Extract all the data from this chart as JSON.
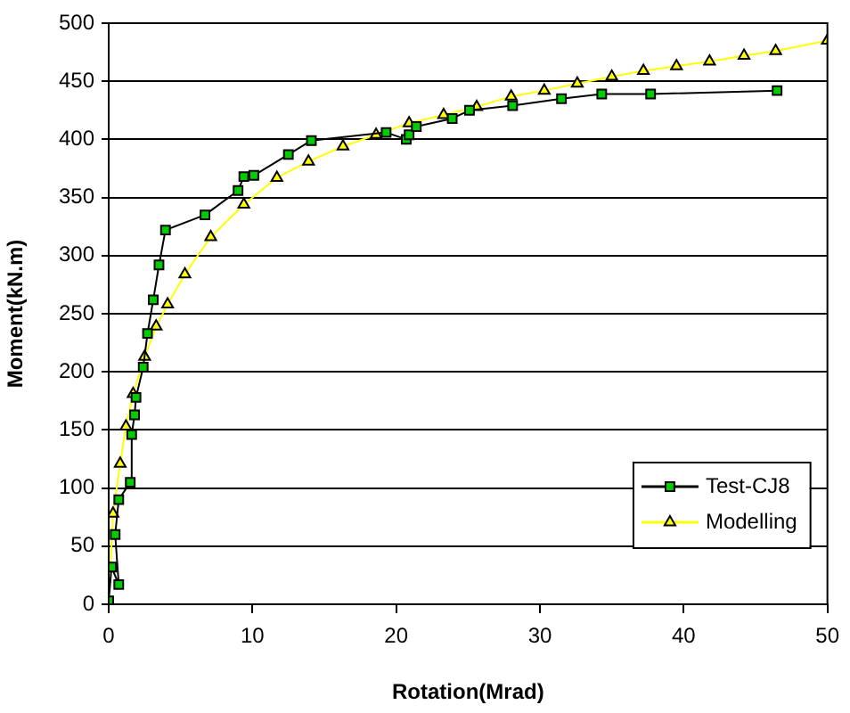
{
  "chart_data": {
    "type": "line",
    "xlabel": "Rotation(Mrad)",
    "ylabel": "Moment(kN.m)",
    "xlim": [
      0,
      50
    ],
    "xticks": [
      0,
      10,
      20,
      30,
      40,
      50
    ],
    "ylim": [
      0,
      500
    ],
    "yticks": [
      0,
      50,
      100,
      150,
      200,
      250,
      300,
      350,
      400,
      450,
      500
    ],
    "grid": "y",
    "legend": "bottom right",
    "line_style": "solid",
    "series": [
      {
        "name": "Test-CJ8",
        "color": "#000000",
        "marker": "square",
        "colors": [
          "#00cc00",
          "#00cc00",
          "#00cc00",
          "#00cc00",
          "#00cc00",
          "#00cc00",
          "#00cc00",
          "#00cc00",
          "#00cc00",
          "#00cc00",
          "#00cc00",
          "#00cc00",
          "#00cc00",
          "#00cc00",
          "#00cc00",
          "#00cc00",
          "#00cc00",
          "#00cc00",
          "#00cc00",
          "#00cc00",
          "#00cc00",
          "#00cc00",
          "#00cc00",
          "#00cc00",
          "#00cc00",
          "#00cc00",
          "#00cc00",
          "#00cc00",
          "#00cc00",
          "#00cc00",
          "#00cc00"
        ],
        "x": [
          0,
          0.2,
          0.7,
          0.45,
          0.7,
          1.5,
          1.6,
          1.8,
          1.9,
          2.4,
          2.7,
          3.1,
          3.5,
          3.95,
          6.7,
          9.0,
          9.4,
          10.1,
          12.5,
          14.1,
          19.3,
          20.7,
          20.9,
          21.4,
          23.9,
          25.1,
          28.1,
          31.5,
          34.3,
          37.7,
          46.5
        ],
        "values": [
          3,
          32,
          17,
          60,
          90,
          105,
          146,
          163,
          178,
          204,
          233,
          262,
          292,
          322,
          335,
          356,
          368,
          369,
          387,
          399,
          406,
          400,
          404,
          411,
          418,
          425,
          429,
          435,
          439,
          439,
          442
        ]
      },
      {
        "name": "Modelling",
        "color": "#ffff00",
        "marker": "triangle",
        "colors": [
          "#ffff00",
          "#ffff00",
          "#ffff00",
          "#ffff00",
          "#ffff00",
          "#ffff00",
          "#ffff00",
          "#ffff00",
          "#ffff00",
          "#ffff00",
          "#ffff00",
          "#ffff00",
          "#ffff00",
          "#ffff00",
          "#ffff00",
          "#ffff00",
          "#ffff00",
          "#ffff00",
          "#ffff00",
          "#ffff00",
          "#ffff00",
          "#ffff00",
          "#ffff00",
          "#ffff00",
          "#ffff00",
          "#ffff00",
          "#ffff00",
          "#ffff00"
        ],
        "x": [
          0,
          0.3,
          0.8,
          1.2,
          1.7,
          2.5,
          3.3,
          4.1,
          5.3,
          7.1,
          9.4,
          11.7,
          13.9,
          16.3,
          18.6,
          20.9,
          23.3,
          25.6,
          28.0,
          30.3,
          32.6,
          35.0,
          37.2,
          39.5,
          41.8,
          44.2,
          46.4,
          50
        ],
        "values": [
          2,
          78,
          121,
          153,
          181,
          213,
          239,
          258,
          284,
          316,
          344,
          367,
          381,
          394,
          404,
          414,
          421,
          428,
          437,
          442,
          448,
          454,
          459,
          463,
          467,
          472,
          476,
          485
        ]
      }
    ]
  }
}
